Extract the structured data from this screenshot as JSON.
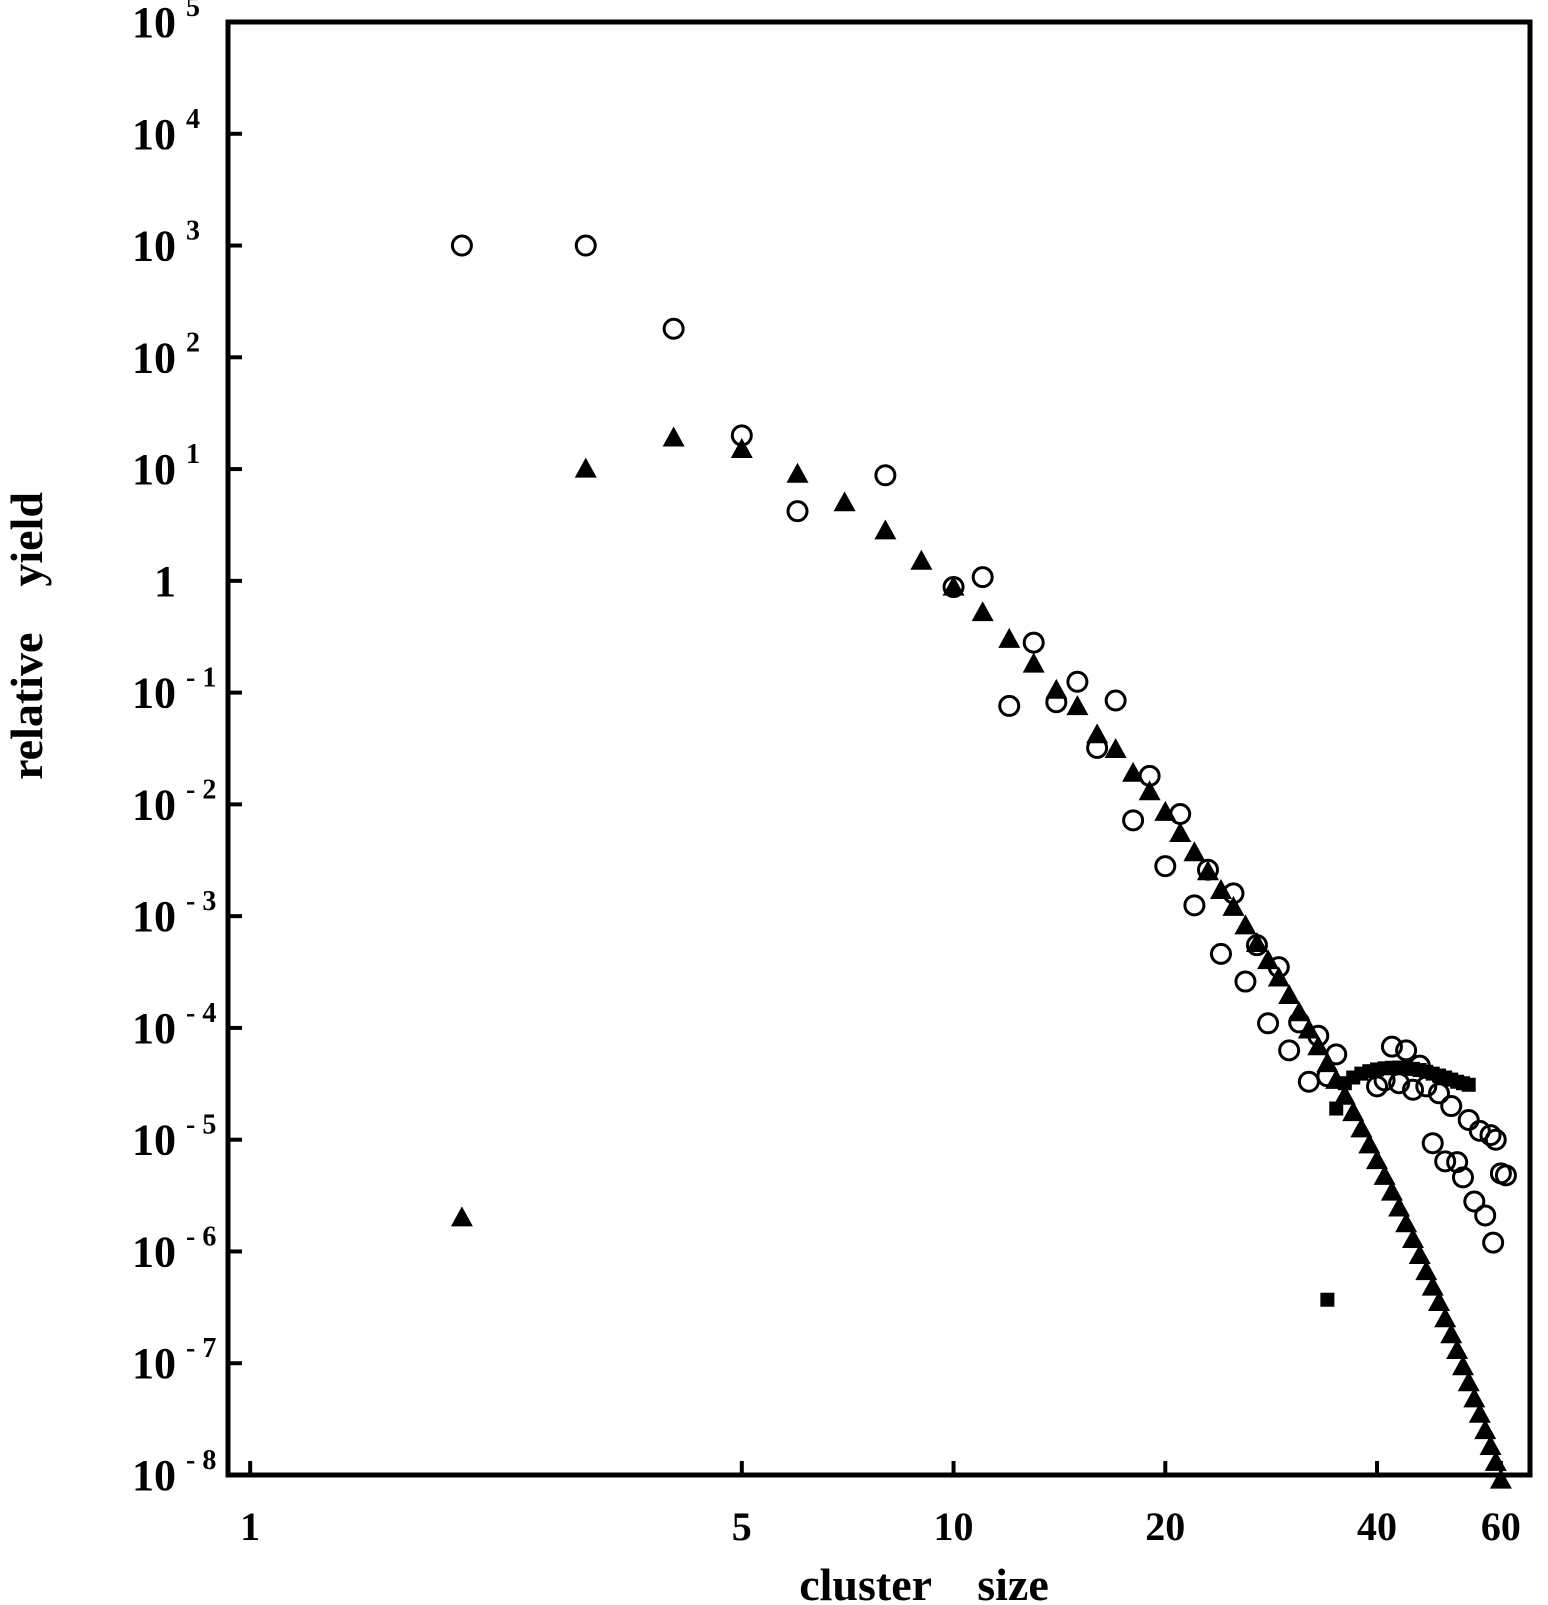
{
  "chart_data": {
    "type": "scatter",
    "x_scale": "log",
    "y_scale": "log",
    "xlim": [
      0.93,
      66
    ],
    "ylim": [
      1e-08,
      100000.0
    ],
    "xlabel": "cluster    size",
    "ylabel": "relative    yield",
    "x_ticks": [
      {
        "value": 1,
        "label": "1"
      },
      {
        "value": 5,
        "label": "5"
      },
      {
        "value": 10,
        "label": "10"
      },
      {
        "value": 20,
        "label": "20"
      },
      {
        "value": 40,
        "label": "40"
      },
      {
        "value": 60,
        "label": "60"
      }
    ],
    "y_ticks": [
      {
        "value": 100000.0,
        "base": "10",
        "exp": "5"
      },
      {
        "value": 10000.0,
        "base": "10",
        "exp": "4"
      },
      {
        "value": 1000.0,
        "base": "10",
        "exp": "3"
      },
      {
        "value": 100.0,
        "base": "10",
        "exp": "2"
      },
      {
        "value": 10.0,
        "base": "10",
        "exp": "1"
      },
      {
        "value": 1,
        "base": "1",
        "exp": ""
      },
      {
        "value": 0.1,
        "base": "10",
        "exp": "- 1"
      },
      {
        "value": 0.01,
        "base": "10",
        "exp": "- 2"
      },
      {
        "value": 0.001,
        "base": "10",
        "exp": "- 3"
      },
      {
        "value": 0.0001,
        "base": "10",
        "exp": "- 4"
      },
      {
        "value": 1e-05,
        "base": "10",
        "exp": "- 5"
      },
      {
        "value": 1e-06,
        "base": "10",
        "exp": "- 6"
      },
      {
        "value": 1e-07,
        "base": "10",
        "exp": "- 7"
      },
      {
        "value": 1e-08,
        "base": "10",
        "exp": "- 8"
      }
    ],
    "series": [
      {
        "marker": "open-circle",
        "points": [
          [
            2,
            1000
          ],
          [
            3,
            1000
          ],
          [
            4,
            180
          ],
          [
            5,
            20
          ],
          [
            6,
            4.2
          ],
          [
            8,
            8.8
          ],
          [
            10,
            0.88
          ],
          [
            11,
            1.08
          ],
          [
            12,
            0.076
          ],
          [
            13,
            0.28
          ],
          [
            14,
            0.082
          ],
          [
            15,
            0.125
          ],
          [
            16,
            0.032
          ],
          [
            17,
            0.085
          ],
          [
            18,
            0.0072
          ],
          [
            19,
            0.018
          ],
          [
            20,
            0.0028
          ],
          [
            21,
            0.0082
          ],
          [
            22,
            0.00125
          ],
          [
            23,
            0.0026
          ],
          [
            24,
            0.00046
          ],
          [
            25,
            0.0016
          ],
          [
            26,
            0.00026
          ],
          [
            27,
            0.00055
          ],
          [
            28,
            0.00011
          ],
          [
            29,
            0.00035
          ],
          [
            30,
            6.3e-05
          ],
          [
            31,
            0.000112
          ],
          [
            32,
            3.3e-05
          ],
          [
            33,
            8.5e-05
          ],
          [
            34,
            3.7e-05
          ],
          [
            35,
            5.8e-05
          ],
          [
            40,
            3e-05
          ],
          [
            41,
            3.4e-05
          ],
          [
            42,
            6.8e-05
          ],
          [
            43,
            3.2e-05
          ],
          [
            44,
            6.3e-05
          ],
          [
            45,
            2.8e-05
          ],
          [
            46,
            4.6e-05
          ],
          [
            47,
            3e-05
          ],
          [
            48,
            9.3e-06
          ],
          [
            49,
            2.6e-05
          ],
          [
            50,
            6.4e-06
          ],
          [
            51,
            2e-05
          ],
          [
            52,
            6.3e-06
          ],
          [
            53,
            4.6e-06
          ],
          [
            54,
            1.5e-05
          ],
          [
            55,
            2.8e-06
          ],
          [
            56,
            1.2e-05
          ],
          [
            57,
            2.1e-06
          ],
          [
            58,
            1.1e-05
          ],
          [
            58.5,
            1.2e-06
          ],
          [
            59,
            1e-05
          ],
          [
            60,
            5e-06
          ],
          [
            61,
            4.8e-06
          ]
        ]
      },
      {
        "marker": "filled-triangle",
        "points": [
          [
            2,
            2e-06
          ],
          [
            3,
            10
          ],
          [
            4,
            19
          ],
          [
            5,
            15
          ],
          [
            6,
            9
          ],
          [
            7,
            5
          ],
          [
            8,
            2.8
          ],
          [
            9,
            1.5
          ],
          [
            10,
            0.88
          ],
          [
            11,
            0.52
          ],
          [
            12,
            0.3
          ],
          [
            13,
            0.18
          ],
          [
            14,
            0.105
          ],
          [
            15,
            0.075
          ],
          [
            16,
            0.042
          ],
          [
            17,
            0.031
          ],
          [
            18,
            0.019
          ],
          [
            19,
            0.013
          ],
          [
            20,
            0.0085
          ],
          [
            21,
            0.0055
          ],
          [
            22,
            0.0037
          ],
          [
            23,
            0.0025
          ],
          [
            24,
            0.0017
          ],
          [
            25,
            0.0012
          ],
          [
            26,
            0.00082
          ],
          [
            27,
            0.00057
          ],
          [
            28,
            0.0004
          ],
          [
            29,
            0.00028
          ],
          [
            30,
            0.000195
          ],
          [
            31,
            0.000137
          ],
          [
            32,
            9.6e-05
          ],
          [
            33,
            6.8e-05
          ],
          [
            34,
            4.8e-05
          ],
          [
            35,
            3.4e-05
          ],
          [
            36,
            2.45e-05
          ],
          [
            37,
            1.75e-05
          ],
          [
            38,
            1.25e-05
          ],
          [
            39,
            9e-06
          ],
          [
            40,
            6.5e-06
          ],
          [
            41,
            4.7e-06
          ],
          [
            42,
            3.4e-06
          ],
          [
            43,
            2.45e-06
          ],
          [
            44,
            1.77e-06
          ],
          [
            45,
            1.28e-06
          ],
          [
            46,
            9.2e-07
          ],
          [
            47,
            6.6e-07
          ],
          [
            48,
            4.8e-07
          ],
          [
            49,
            3.5e-07
          ],
          [
            50,
            2.5e-07
          ],
          [
            51,
            1.8e-07
          ],
          [
            52,
            1.3e-07
          ],
          [
            53,
            9.3e-08
          ],
          [
            54,
            6.7e-08
          ],
          [
            55,
            4.8e-08
          ],
          [
            56,
            3.5e-08
          ],
          [
            57,
            2.5e-08
          ],
          [
            58,
            1.8e-08
          ],
          [
            59,
            1.3e-08
          ],
          [
            60,
            9e-09
          ]
        ]
      },
      {
        "marker": "filled-square",
        "points": [
          [
            34,
            3.7e-07
          ],
          [
            35,
            1.9e-05
          ],
          [
            36,
            3.2e-05
          ],
          [
            37,
            3.6e-05
          ],
          [
            38,
            3.9e-05
          ],
          [
            39,
            4.1e-05
          ],
          [
            40,
            4.25e-05
          ],
          [
            41,
            4.35e-05
          ],
          [
            42,
            4.4e-05
          ],
          [
            43,
            4.42e-05
          ],
          [
            44,
            4.4e-05
          ],
          [
            45,
            4.3e-05
          ],
          [
            46,
            4.2e-05
          ],
          [
            47,
            4.05e-05
          ],
          [
            48,
            3.9e-05
          ],
          [
            49,
            3.75e-05
          ],
          [
            50,
            3.6e-05
          ],
          [
            51,
            3.45e-05
          ],
          [
            52,
            3.3e-05
          ],
          [
            53,
            3.2e-05
          ],
          [
            54,
            3.1e-05
          ]
        ]
      }
    ],
    "grid": false,
    "legend": "none"
  }
}
